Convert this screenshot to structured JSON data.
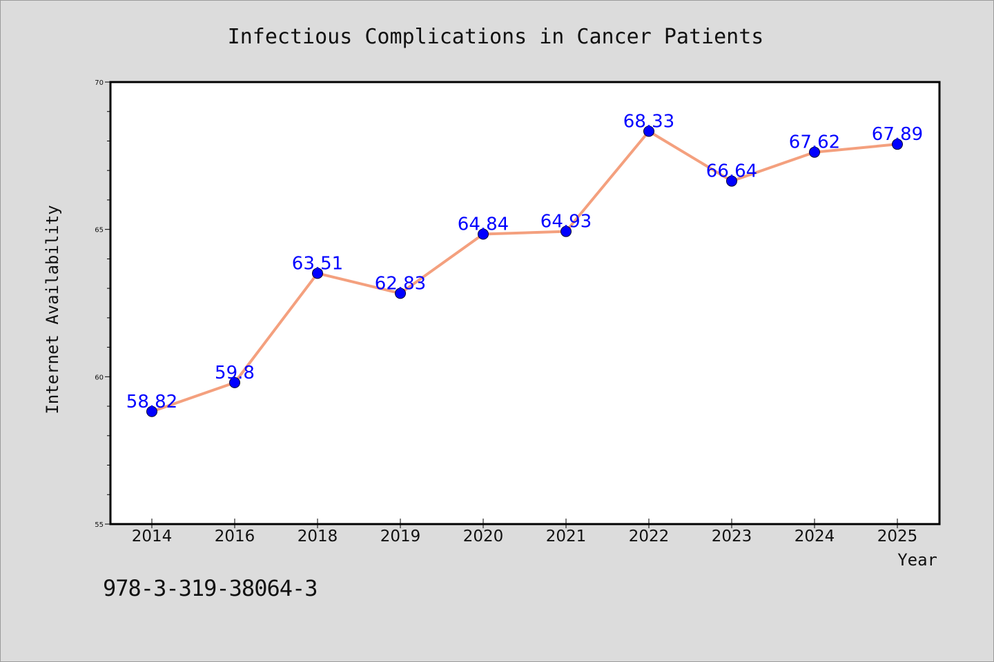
{
  "chart_data": {
    "type": "line",
    "title": "Infectious Complications in Cancer Patients",
    "xlabel": "Year",
    "ylabel": "Internet Availability",
    "categories": [
      "2014",
      "2016",
      "2018",
      "2019",
      "2020",
      "2021",
      "2022",
      "2023",
      "2024",
      "2025"
    ],
    "series": [
      {
        "values": [
          58.82,
          59.8,
          63.51,
          62.83,
          64.84,
          64.93,
          68.33,
          66.64,
          67.62,
          67.89
        ],
        "labels": [
          "58.82",
          "59.8",
          "63.51",
          "62.83",
          "64.84",
          "64.93",
          "68.33",
          "66.64",
          "67.62",
          "67.89"
        ],
        "line_color": "#f4a07e",
        "marker_color": "#0000ff"
      }
    ],
    "ylim": [
      55,
      70
    ],
    "yticks": [
      55,
      60,
      65,
      70
    ],
    "grid": false,
    "legend": "none"
  },
  "footnote": "978-3-319-38064-3",
  "colors": {
    "background": "#dcdcdc",
    "plot_background": "#ffffff",
    "line": "#f4a07e",
    "marker": "#0000ff",
    "data_label": "#0000ff"
  }
}
